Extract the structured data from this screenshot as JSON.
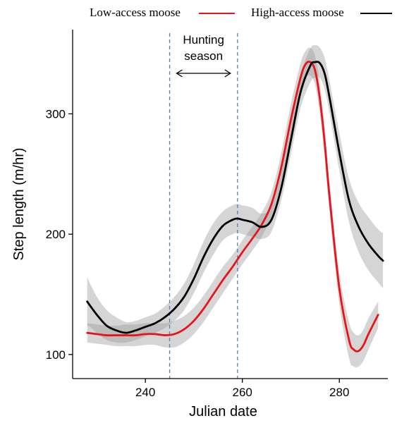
{
  "chart_data": {
    "type": "line",
    "xlabel": "Julian date",
    "ylabel": "Step length (m/hr)",
    "xlim": [
      225,
      290
    ],
    "ylim": [
      80,
      370
    ],
    "xticks": [
      240,
      260,
      280
    ],
    "yticks": [
      100,
      200,
      300
    ],
    "grid": false,
    "legend_position": "top",
    "annotation": {
      "text_line1": "Hunting",
      "text_line2": "season",
      "x_start": 245,
      "x_end": 259,
      "line_color": "#5b7fb0"
    },
    "series": [
      {
        "name": "Low-access moose",
        "color": "#e8141b",
        "x": [
          228,
          230,
          232,
          234,
          236,
          238,
          240,
          242,
          244,
          246,
          248,
          250,
          252,
          254,
          256,
          258,
          260,
          262,
          264,
          266,
          268,
          270,
          272,
          273,
          274,
          275,
          276,
          277,
          278,
          280,
          282,
          283,
          284,
          285,
          286,
          288
        ],
        "y": [
          118,
          117,
          116,
          116,
          116,
          116,
          117,
          117,
          116,
          117,
          121,
          128,
          138,
          150,
          162,
          173,
          185,
          196,
          208,
          225,
          255,
          295,
          330,
          341,
          343,
          336,
          312,
          275,
          230,
          155,
          112,
          104,
          103,
          108,
          117,
          133
        ],
        "band_lower": [
          110,
          109,
          108,
          107,
          107,
          107,
          108,
          108,
          106,
          106,
          110,
          117,
          127,
          139,
          151,
          163,
          175,
          186,
          198,
          215,
          243,
          282,
          318,
          330,
          332,
          324,
          300,
          262,
          218,
          142,
          97,
          90,
          90,
          95,
          104,
          122
        ],
        "band_upper": [
          126,
          125,
          124,
          124,
          125,
          125,
          126,
          126,
          126,
          128,
          132,
          139,
          149,
          161,
          173,
          183,
          195,
          206,
          218,
          235,
          267,
          308,
          342,
          352,
          355,
          348,
          325,
          288,
          242,
          168,
          127,
          118,
          116,
          121,
          130,
          144
        ]
      },
      {
        "name": "High-access moose",
        "color": "#000000",
        "x": [
          228,
          230,
          232,
          234,
          236,
          238,
          240,
          242,
          244,
          246,
          248,
          250,
          252,
          254,
          256,
          258,
          259,
          260,
          262,
          264,
          266,
          268,
          270,
          272,
          274,
          275,
          276,
          277,
          278,
          280,
          282,
          284,
          286,
          288,
          289
        ],
        "y": [
          144,
          133,
          124,
          120,
          118,
          120,
          123,
          126,
          131,
          138,
          148,
          163,
          181,
          196,
          207,
          212,
          213,
          212,
          210,
          206,
          212,
          238,
          278,
          318,
          340,
          343,
          342,
          333,
          313,
          268,
          228,
          206,
          192,
          182,
          178
        ],
        "band_lower": [
          125,
          118,
          112,
          110,
          110,
          112,
          115,
          118,
          122,
          128,
          137,
          151,
          168,
          183,
          195,
          200,
          201,
          200,
          198,
          196,
          202,
          228,
          266,
          305,
          326,
          330,
          330,
          320,
          300,
          253,
          210,
          185,
          170,
          160,
          155
        ],
        "band_upper": [
          164,
          148,
          137,
          131,
          127,
          128,
          131,
          134,
          140,
          148,
          159,
          175,
          194,
          209,
          219,
          224,
          225,
          224,
          222,
          217,
          223,
          250,
          290,
          332,
          354,
          357,
          355,
          346,
          327,
          284,
          246,
          226,
          214,
          204,
          201
        ]
      }
    ]
  }
}
